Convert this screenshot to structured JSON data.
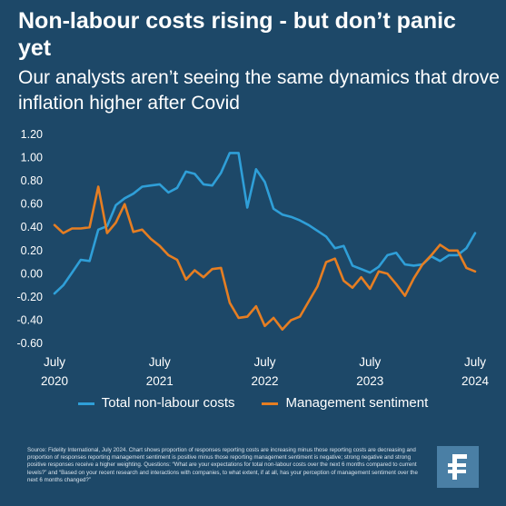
{
  "header": {
    "title": "Non-labour costs rising - but don’t panic yet",
    "subtitle": "Our analysts aren’t seeing the same dynamics that drove inflation higher after Covid"
  },
  "colors": {
    "background": "#1d4868",
    "series_total": "#2f9fd8",
    "series_management": "#e67e22",
    "logo_bg": "#4a7fa5"
  },
  "chart_data": {
    "type": "line",
    "title": "",
    "xlabel": "",
    "ylabel": "",
    "ylim": [
      -0.6,
      1.2
    ],
    "yticks": [
      "1.20",
      "1.00",
      "0.80",
      "0.60",
      "0.40",
      "0.20",
      "0.00",
      "-0.20",
      "-0.40",
      "-0.60"
    ],
    "x_ticks": [
      {
        "line1": "July",
        "line2": "2020"
      },
      {
        "line1": "July",
        "line2": "2021"
      },
      {
        "line1": "July",
        "line2": "2022"
      },
      {
        "line1": "July",
        "line2": "2023"
      },
      {
        "line1": "July",
        "line2": "2024"
      }
    ],
    "x_start": "2020-07",
    "x_end": "2024-07",
    "series": [
      {
        "name": "Total non-labour costs",
        "color": "#2f9fd8",
        "values": [
          -0.17,
          -0.1,
          0.01,
          0.12,
          0.11,
          0.38,
          0.41,
          0.59,
          0.65,
          0.69,
          0.75,
          0.76,
          0.77,
          0.7,
          0.74,
          0.88,
          0.86,
          0.77,
          0.76,
          0.87,
          1.04,
          1.04,
          0.57,
          0.9,
          0.79,
          0.56,
          0.51,
          0.49,
          0.46,
          0.42,
          0.37,
          0.32,
          0.22,
          0.24,
          0.07,
          0.04,
          0.01,
          0.06,
          0.16,
          0.18,
          0.08,
          0.07,
          0.08,
          0.15,
          0.11,
          0.16,
          0.16,
          0.22,
          0.35
        ]
      },
      {
        "name": "Management sentiment",
        "color": "#e67e22",
        "values": [
          0.42,
          0.35,
          0.39,
          0.39,
          0.4,
          0.75,
          0.35,
          0.44,
          0.6,
          0.36,
          0.38,
          0.3,
          0.24,
          0.16,
          0.12,
          -0.05,
          0.03,
          -0.03,
          0.04,
          0.05,
          -0.25,
          -0.38,
          -0.37,
          -0.28,
          -0.45,
          -0.38,
          -0.48,
          -0.4,
          -0.37,
          -0.24,
          -0.11,
          0.1,
          0.13,
          -0.06,
          -0.12,
          -0.03,
          -0.13,
          0.02,
          0.0,
          -0.09,
          -0.19,
          -0.04,
          0.08,
          0.16,
          0.25,
          0.2,
          0.2,
          0.05,
          0.02
        ]
      }
    ],
    "grid": false,
    "legend_placement": "bottom"
  },
  "source": {
    "text": "Source: Fidelity International, July 2024. Chart shows proportion of responses reporting costs are increasing minus those reporting costs are decreasing and proportion of responses reporting management sentiment is positive minus those reporting management sentiment is negative; strong negative and strong positive responses receive a higher weighting. Questions: “What are your expectations for total non-labour costs over the next 6 months compared to current levels?” and “Based on your recent research and interactions with companies, to what extent, if at all, has your perception of management sentiment over the next 6 months changed?”"
  },
  "logo": {
    "icon": "fidelity-f-logo"
  }
}
